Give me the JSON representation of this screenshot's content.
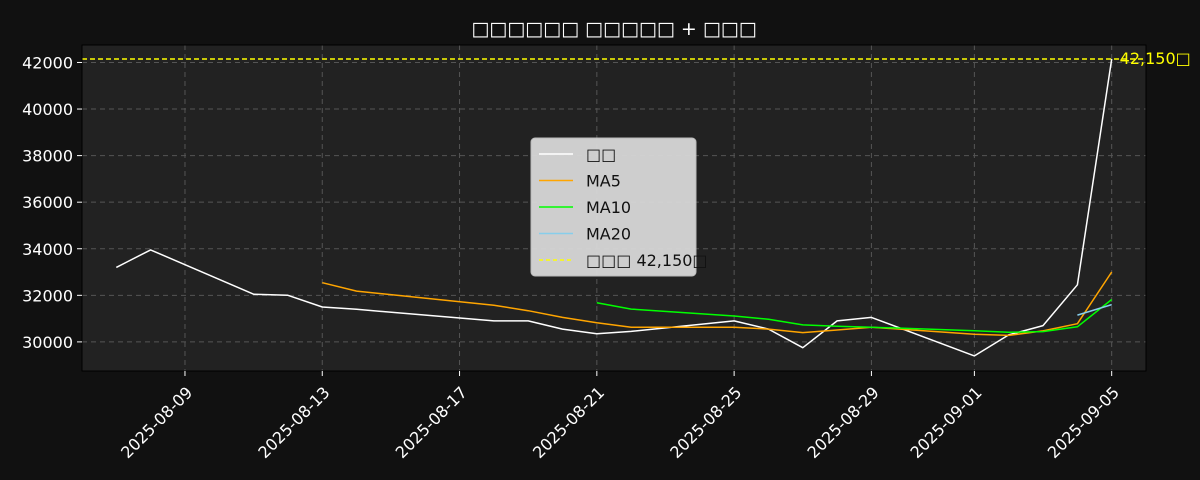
{
  "chart_data": {
    "type": "line",
    "title": "□□□□□□ □□□□□ + □□□",
    "xlabel": "",
    "ylabel": "",
    "x_range": [
      "2025-08-06",
      "2025-09-06"
    ],
    "ylim": [
      28750,
      42750
    ],
    "grid": true,
    "legend_position": "center",
    "x_ticks": [
      "2025-08-09",
      "2025-08-13",
      "2025-08-17",
      "2025-08-21",
      "2025-08-25",
      "2025-08-29",
      "2025-09-01",
      "2025-09-05"
    ],
    "y_ticks": [
      30000,
      32000,
      34000,
      36000,
      38000,
      40000,
      42000
    ],
    "dates": [
      "2025-08-07",
      "2025-08-08",
      "2025-08-11",
      "2025-08-12",
      "2025-08-13",
      "2025-08-14",
      "2025-08-18",
      "2025-08-19",
      "2025-08-20",
      "2025-08-21",
      "2025-08-22",
      "2025-08-25",
      "2025-08-26",
      "2025-08-27",
      "2025-08-28",
      "2025-08-29",
      "2025-09-01",
      "2025-09-02",
      "2025-09-03",
      "2025-09-04",
      "2025-09-05"
    ],
    "series": [
      {
        "name": "□□",
        "color": "#ffffff",
        "style": "solid",
        "values": [
          33200,
          33950,
          32050,
          32000,
          31500,
          31400,
          30900,
          30900,
          30550,
          30350,
          30450,
          30900,
          30550,
          29750,
          30900,
          31050,
          29400,
          30300,
          30700,
          32450,
          42150
        ]
      },
      {
        "name": "MA5",
        "color": "#ffa500",
        "style": "solid",
        "values": [
          null,
          null,
          null,
          null,
          32540,
          32180,
          31570,
          31340,
          31050,
          30820,
          30630,
          30630,
          30550,
          30400,
          30510,
          30630,
          30330,
          30280,
          30470,
          30780,
          33000
        ]
      },
      {
        "name": "MA10",
        "color": "#00ff00",
        "style": "solid",
        "values": [
          null,
          null,
          null,
          null,
          null,
          null,
          null,
          null,
          null,
          31680,
          31410,
          31110,
          30970,
          30730,
          30670,
          30630,
          30480,
          30410,
          30440,
          30650,
          31820
        ]
      },
      {
        "name": "MA20",
        "color": "#87ceeb",
        "style": "solid",
        "values": [
          null,
          null,
          null,
          null,
          null,
          null,
          null,
          null,
          null,
          null,
          null,
          null,
          null,
          null,
          null,
          null,
          null,
          null,
          null,
          31150,
          31600
        ]
      }
    ],
    "reference_line": {
      "name": "□□□ 42,150□",
      "label": "42,150□",
      "value": 42150,
      "color": "#ffff00",
      "style": "dashed"
    }
  }
}
